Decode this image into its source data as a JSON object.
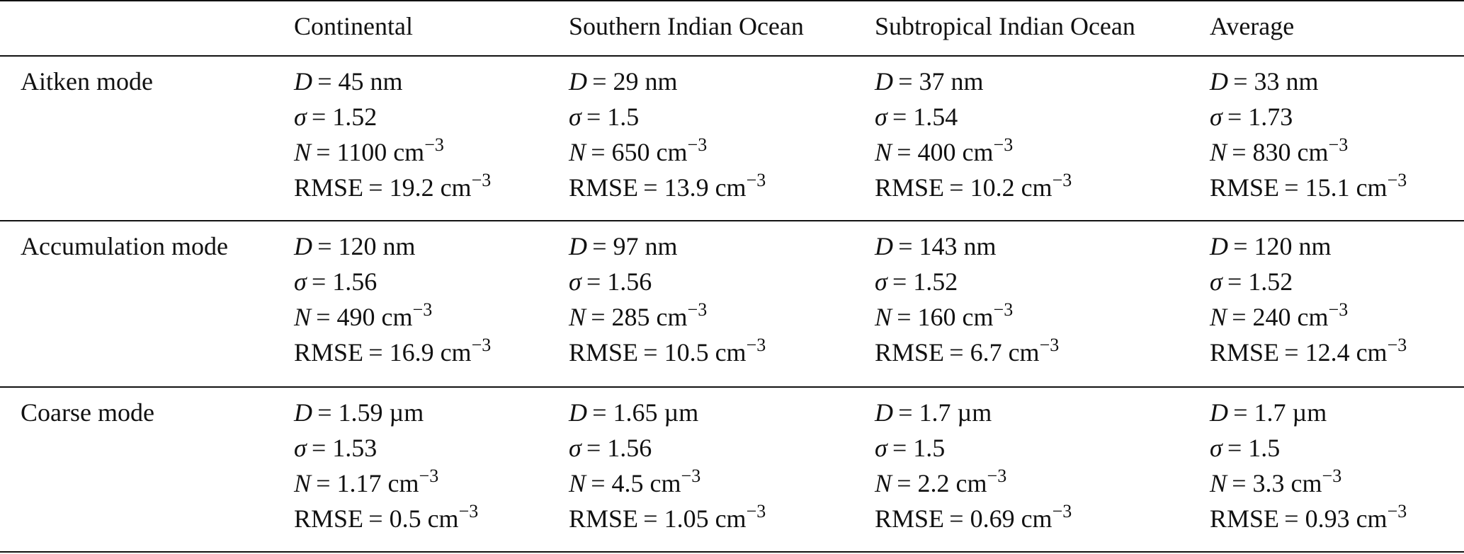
{
  "table": {
    "columns": [
      "Continental",
      "Southern Indian Ocean",
      "Subtropical Indian Ocean",
      "Average"
    ],
    "rows": [
      {
        "label": "Aitken mode",
        "cells": [
          [
            {
              "lhs": "D",
              "rhs": "= 45 nm"
            },
            {
              "lhs": "σ",
              "rhs": "= 1.52"
            },
            {
              "lhs": "N",
              "rhs": "= 1100 cm",
              "sup": "−3"
            },
            {
              "lhs": "RMSE",
              "rhs": "= 19.2 cm",
              "sup": "−3"
            }
          ],
          [
            {
              "lhs": "D",
              "rhs": "= 29 nm"
            },
            {
              "lhs": "σ",
              "rhs": "= 1.5"
            },
            {
              "lhs": "N",
              "rhs": "= 650 cm",
              "sup": "−3"
            },
            {
              "lhs": "RMSE",
              "rhs": "= 13.9 cm",
              "sup": "−3"
            }
          ],
          [
            {
              "lhs": "D",
              "rhs": "= 37 nm"
            },
            {
              "lhs": "σ",
              "rhs": "= 1.54"
            },
            {
              "lhs": "N",
              "rhs": "= 400 cm",
              "sup": "−3"
            },
            {
              "lhs": "RMSE",
              "rhs": "= 10.2 cm",
              "sup": "−3"
            }
          ],
          [
            {
              "lhs": "D",
              "rhs": "= 33 nm"
            },
            {
              "lhs": "σ",
              "rhs": "= 1.73"
            },
            {
              "lhs": "N",
              "rhs": "= 830 cm",
              "sup": "−3"
            },
            {
              "lhs": "RMSE",
              "rhs": "= 15.1 cm",
              "sup": "−3"
            }
          ]
        ]
      },
      {
        "label": "Accumulation mode",
        "cells": [
          [
            {
              "lhs": "D",
              "rhs": "= 120 nm"
            },
            {
              "lhs": "σ",
              "rhs": "= 1.56"
            },
            {
              "lhs": "N",
              "rhs": "= 490 cm",
              "sup": "−3"
            },
            {
              "lhs": "RMSE",
              "rhs": "= 16.9 cm",
              "sup": "−3"
            }
          ],
          [
            {
              "lhs": "D",
              "rhs": "= 97 nm"
            },
            {
              "lhs": "σ",
              "rhs": "= 1.56"
            },
            {
              "lhs": "N",
              "rhs": "= 285 cm",
              "sup": "−3"
            },
            {
              "lhs": "RMSE",
              "rhs": "= 10.5 cm",
              "sup": "−3"
            }
          ],
          [
            {
              "lhs": "D",
              "rhs": "= 143 nm"
            },
            {
              "lhs": "σ",
              "rhs": "= 1.52"
            },
            {
              "lhs": "N",
              "rhs": "= 160 cm",
              "sup": "−3"
            },
            {
              "lhs": "RMSE",
              "rhs": "= 6.7 cm",
              "sup": "−3"
            }
          ],
          [
            {
              "lhs": "D",
              "rhs": "= 120 nm"
            },
            {
              "lhs": "σ",
              "rhs": "= 1.52"
            },
            {
              "lhs": "N",
              "rhs": "= 240 cm",
              "sup": "−3"
            },
            {
              "lhs": "RMSE",
              "rhs": "= 12.4 cm",
              "sup": "−3"
            }
          ]
        ]
      },
      {
        "label": "Coarse mode",
        "cells": [
          [
            {
              "lhs": "D",
              "rhs": "= 1.59 µm"
            },
            {
              "lhs": "σ",
              "rhs": "= 1.53"
            },
            {
              "lhs": "N",
              "rhs": "= 1.17 cm",
              "sup": "−3"
            },
            {
              "lhs": "RMSE",
              "rhs": "= 0.5 cm",
              "sup": "−3"
            }
          ],
          [
            {
              "lhs": "D",
              "rhs": "= 1.65 µm"
            },
            {
              "lhs": "σ",
              "rhs": "= 1.56"
            },
            {
              "lhs": "N",
              "rhs": "= 4.5 cm",
              "sup": "−3"
            },
            {
              "lhs": "RMSE",
              "rhs": "= 1.05 cm",
              "sup": "−3"
            }
          ],
          [
            {
              "lhs": "D",
              "rhs": "= 1.7 µm"
            },
            {
              "lhs": "σ",
              "rhs": "= 1.5"
            },
            {
              "lhs": "N",
              "rhs": "= 2.2 cm",
              "sup": "−3"
            },
            {
              "lhs": "RMSE",
              "rhs": "= 0.69 cm",
              "sup": "−3"
            }
          ],
          [
            {
              "lhs": "D",
              "rhs": "= 1.7 µm"
            },
            {
              "lhs": "σ",
              "rhs": "= 1.5"
            },
            {
              "lhs": "N",
              "rhs": "= 3.3 cm",
              "sup": "−3"
            },
            {
              "lhs": "RMSE",
              "rhs": "= 0.93 cm",
              "sup": "−3"
            }
          ]
        ]
      }
    ]
  }
}
